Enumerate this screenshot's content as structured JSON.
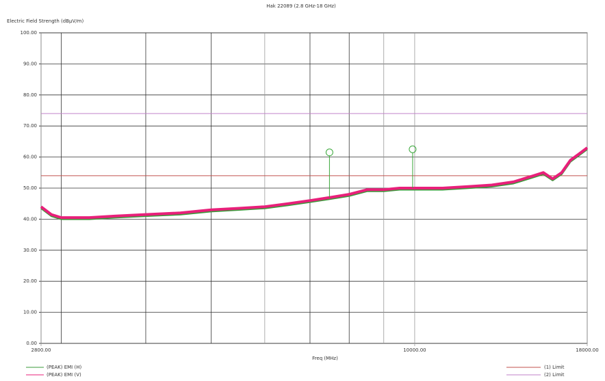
{
  "chart_data": {
    "type": "line",
    "title": "Hak 22089 (2.8 GHz-18 GHz)",
    "y_label": "Electric Field Strength (dBμV/m)",
    "x_label": "Freq (MHz)",
    "x_scale": "log",
    "grid": true,
    "xlim": [
      2800,
      18000
    ],
    "xticks": [
      {
        "value": 2800,
        "label": "2800.00"
      },
      {
        "value": 10000,
        "label": "10000.00"
      },
      {
        "value": 18000,
        "label": "18000.00"
      }
    ],
    "xminor": [
      3000,
      4000,
      5000,
      6000,
      7000,
      8000,
      9000
    ],
    "ylim": [
      0,
      100
    ],
    "yticks": [
      {
        "value": 0,
        "label": "0.00"
      },
      {
        "value": 10,
        "label": "10.00"
      },
      {
        "value": 20,
        "label": "20.00"
      },
      {
        "value": 30,
        "label": "30.00"
      },
      {
        "value": 40,
        "label": "40.00"
      },
      {
        "value": 50,
        "label": "50.00"
      },
      {
        "value": 60,
        "label": "60.00"
      },
      {
        "value": 70,
        "label": "70.00"
      },
      {
        "value": 80,
        "label": "80.00"
      },
      {
        "value": 90,
        "label": "90.00"
      },
      {
        "value": 100,
        "label": "100.00"
      }
    ],
    "x": [
      2800,
      2900,
      3000,
      3300,
      3600,
      4000,
      4500,
      5000,
      5500,
      6000,
      6500,
      7000,
      7500,
      8000,
      8500,
      9000,
      9500,
      10000,
      11000,
      12000,
      13000,
      14000,
      15000,
      15500,
      16000,
      16500,
      17000,
      17500,
      18000
    ],
    "series": [
      {
        "name": "(PEAK) EMI (H)",
        "color": "#3a9a3a",
        "values": [
          43.5,
          41,
          40,
          40,
          40.5,
          41,
          41.5,
          42.5,
          43,
          43.5,
          44.5,
          45.5,
          46.5,
          47.5,
          49,
          49,
          49.5,
          49.5,
          49.5,
          50,
          50.5,
          51.5,
          53.5,
          54.5,
          52.5,
          54.5,
          58.5,
          60.5,
          62.5
        ]
      },
      {
        "name": "(PEAK) EMI (V)",
        "color": "#e8207a",
        "values": [
          44,
          41.5,
          40.5,
          40.5,
          41,
          41.5,
          42,
          43,
          43.5,
          44,
          45,
          46,
          47,
          48,
          49.5,
          49.5,
          50,
          50,
          50,
          50.5,
          51,
          52,
          54,
          55,
          53,
          55,
          59,
          61,
          63
        ]
      }
    ],
    "limits": [
      {
        "name": "(1) Limit",
        "color": "#c0504d",
        "value": 54
      },
      {
        "name": "(2) Limit",
        "color": "#c080c8",
        "value": 74
      }
    ],
    "markers": [
      {
        "x": 7480,
        "value": 61.5
      },
      {
        "x": 9930,
        "value": 62.5
      }
    ],
    "marker_color": "#3aa83a"
  }
}
